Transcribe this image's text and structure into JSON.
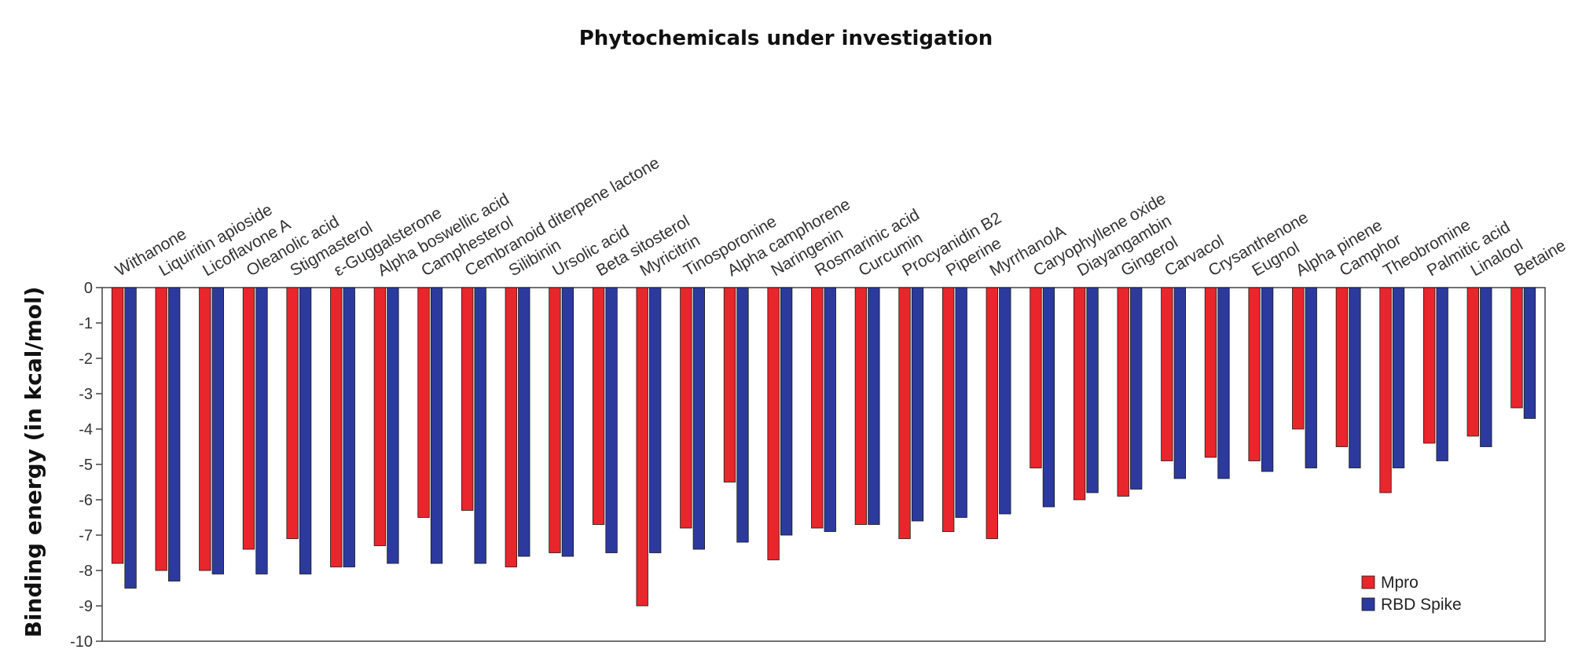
{
  "chart_data": {
    "type": "bar",
    "title": "Phytochemicals under investigation",
    "xlabel": "",
    "ylabel": "Binding energy (in kcal/mol)",
    "ylim": [
      -10,
      0
    ],
    "yticks": [
      0,
      -1,
      -2,
      -3,
      -4,
      -5,
      -6,
      -7,
      -8,
      -9,
      -10
    ],
    "grid": false,
    "legend_position": "bottom-right",
    "categories": [
      "Withanone",
      "Liquiritin apioside",
      "Licoflavone A",
      "Oleanolic acid",
      "Stigmasterol",
      "ε-Guggalsterone",
      "Alpha boswellic acid",
      "Camphesterol",
      "Cembranoid diterpene lactone",
      "Silibinin",
      "Ursolic acid",
      "Beta sitosterol",
      "Myricitrin",
      "Tinosporonine",
      "Alpha camphorene",
      "Naringenin",
      "Rosmarinic acid",
      "Curcumin",
      "Procyanidin B2",
      "Piperine",
      "MyrrhanolA",
      "Caryophyllene oxide",
      "Diayangambin",
      "Gingerol",
      "Carvacol",
      "Crysanthenone",
      "Eugnol",
      "Alpha pinene",
      "Camphor",
      "Theobromine",
      "Palmitic acid",
      "Linalool",
      "Betaine"
    ],
    "series": [
      {
        "name": "Mpro",
        "color": "#e8262b",
        "values": [
          -7.8,
          -8.0,
          -8.0,
          -7.4,
          -7.1,
          -7.9,
          -7.3,
          -6.5,
          -6.3,
          -7.9,
          -7.5,
          -6.7,
          -9.0,
          -6.8,
          -5.5,
          -7.7,
          -6.8,
          -6.7,
          -7.1,
          -6.9,
          -7.1,
          -5.1,
          -6.0,
          -5.9,
          -4.9,
          -4.8,
          -4.9,
          -4.0,
          -4.5,
          -5.8,
          -4.4,
          -4.2,
          -3.4
        ]
      },
      {
        "name": "RBD Spike",
        "color": "#2b3a9c",
        "values": [
          -8.5,
          -8.3,
          -8.1,
          -8.1,
          -8.1,
          -7.9,
          -7.8,
          -7.8,
          -7.8,
          -7.6,
          -7.6,
          -7.5,
          -7.5,
          -7.4,
          -7.2,
          -7.0,
          -6.9,
          -6.7,
          -6.6,
          -6.5,
          -6.4,
          -6.2,
          -5.8,
          -5.7,
          -5.4,
          -5.4,
          -5.2,
          -5.1,
          -5.1,
          -5.1,
          -4.9,
          -4.5,
          -3.7
        ]
      }
    ]
  }
}
